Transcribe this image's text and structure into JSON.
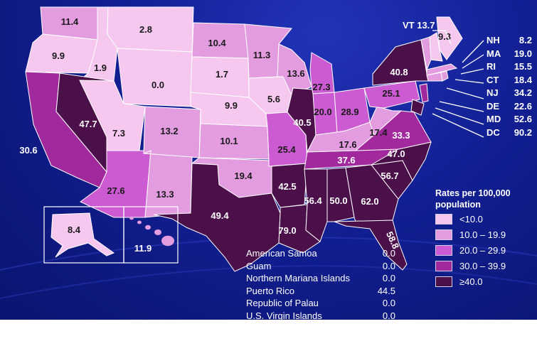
{
  "colors": {
    "lt10": "#f6c8ef",
    "b10_19": "#e39ce0",
    "b20_29": "#cc5ad2",
    "b30_39": "#a1289d",
    "ge40": "#4b0f4a"
  },
  "states": [
    {
      "abbr": "WA",
      "value": "11.4",
      "bin": "b10_19"
    },
    {
      "abbr": "OR",
      "value": "9.9",
      "bin": "lt10"
    },
    {
      "abbr": "ID",
      "value": "1.9",
      "bin": "lt10"
    },
    {
      "abbr": "MT",
      "value": "2.8",
      "bin": "lt10"
    },
    {
      "abbr": "WY",
      "value": "0.0",
      "bin": "lt10"
    },
    {
      "abbr": "CA",
      "value": "30.6",
      "bin": "b30_39"
    },
    {
      "abbr": "NV",
      "value": "47.7",
      "bin": "ge40"
    },
    {
      "abbr": "UT",
      "value": "7.3",
      "bin": "lt10"
    },
    {
      "abbr": "AZ",
      "value": "27.6",
      "bin": "b20_29"
    },
    {
      "abbr": "CO",
      "value": "13.2",
      "bin": "b10_19"
    },
    {
      "abbr": "NM",
      "value": "13.3",
      "bin": "b10_19"
    },
    {
      "abbr": "ND",
      "value": "10.4",
      "bin": "b10_19"
    },
    {
      "abbr": "SD",
      "value": "1.7",
      "bin": "lt10"
    },
    {
      "abbr": "NE",
      "value": "9.9",
      "bin": "lt10"
    },
    {
      "abbr": "KS",
      "value": "10.1",
      "bin": "b10_19"
    },
    {
      "abbr": "OK",
      "value": "19.4",
      "bin": "b10_19"
    },
    {
      "abbr": "TX",
      "value": "49.4",
      "bin": "ge40"
    },
    {
      "abbr": "MN",
      "value": "11.3",
      "bin": "b10_19"
    },
    {
      "abbr": "IA",
      "value": "5.6",
      "bin": "lt10"
    },
    {
      "abbr": "MO",
      "value": "25.4",
      "bin": "b20_29"
    },
    {
      "abbr": "AR",
      "value": "42.5",
      "bin": "ge40"
    },
    {
      "abbr": "LA",
      "value": "79.0",
      "bin": "ge40"
    },
    {
      "abbr": "WI",
      "value": "13.6",
      "bin": "b10_19"
    },
    {
      "abbr": "IL",
      "value": "40.5",
      "bin": "ge40"
    },
    {
      "abbr": "MI",
      "value": "27.3",
      "bin": "b20_29"
    },
    {
      "abbr": "IN",
      "value": "20.0",
      "bin": "b20_29"
    },
    {
      "abbr": "OH",
      "value": "28.9",
      "bin": "b20_29"
    },
    {
      "abbr": "KY",
      "value": "17.6",
      "bin": "b10_19"
    },
    {
      "abbr": "TN",
      "value": "37.6",
      "bin": "b30_39"
    },
    {
      "abbr": "MS",
      "value": "56.4",
      "bin": "ge40"
    },
    {
      "abbr": "AL",
      "value": "50.0",
      "bin": "ge40"
    },
    {
      "abbr": "GA",
      "value": "62.0",
      "bin": "ge40"
    },
    {
      "abbr": "FL",
      "value": "58.8",
      "bin": "ge40"
    },
    {
      "abbr": "SC",
      "value": "56.7",
      "bin": "ge40"
    },
    {
      "abbr": "NC",
      "value": "47.0",
      "bin": "ge40"
    },
    {
      "abbr": "VA",
      "value": "33.3",
      "bin": "b30_39"
    },
    {
      "abbr": "WV",
      "value": "17.4",
      "bin": "b10_19"
    },
    {
      "abbr": "PA",
      "value": "25.1",
      "bin": "b20_29"
    },
    {
      "abbr": "NY",
      "value": "40.8",
      "bin": "ge40"
    },
    {
      "abbr": "ME",
      "value": "9.3",
      "bin": "lt10"
    },
    {
      "abbr": "AK",
      "value": "8.4",
      "bin": "lt10"
    },
    {
      "abbr": "HI",
      "value": "11.9",
      "bin": "b10_19"
    }
  ],
  "callouts": {
    "vt": "VT 13.7",
    "items": [
      {
        "abbr": "NH",
        "value": "8.2"
      },
      {
        "abbr": "MA",
        "value": "19.0"
      },
      {
        "abbr": "RI",
        "value": "15.5"
      },
      {
        "abbr": "CT",
        "value": "18.4"
      },
      {
        "abbr": "NJ",
        "value": "34.2"
      },
      {
        "abbr": "DE",
        "value": "22.6"
      },
      {
        "abbr": "MD",
        "value": "52.6"
      },
      {
        "abbr": "DC",
        "value": "90.2"
      }
    ]
  },
  "legend": {
    "title": "Rates per 100,000 population",
    "items": [
      {
        "label": "<10.0",
        "bin": "lt10"
      },
      {
        "label": "10.0 – 19.9",
        "bin": "b10_19"
      },
      {
        "label": "20.0 – 29.9",
        "bin": "b20_29"
      },
      {
        "label": "30.0 – 39.9",
        "bin": "b30_39"
      },
      {
        "label": "≥40.0",
        "bin": "ge40"
      }
    ]
  },
  "territories": [
    {
      "name": "American Samoa",
      "value": "0.0"
    },
    {
      "name": "Guam",
      "value": "0.0"
    },
    {
      "name": "Northern Mariana Islands",
      "value": "0.0"
    },
    {
      "name": "Puerto Rico",
      "value": "44.5"
    },
    {
      "name": "Republic of Palau",
      "value": "0.0"
    },
    {
      "name": "U.S. Virgin Islands",
      "value": "0.0"
    }
  ]
}
